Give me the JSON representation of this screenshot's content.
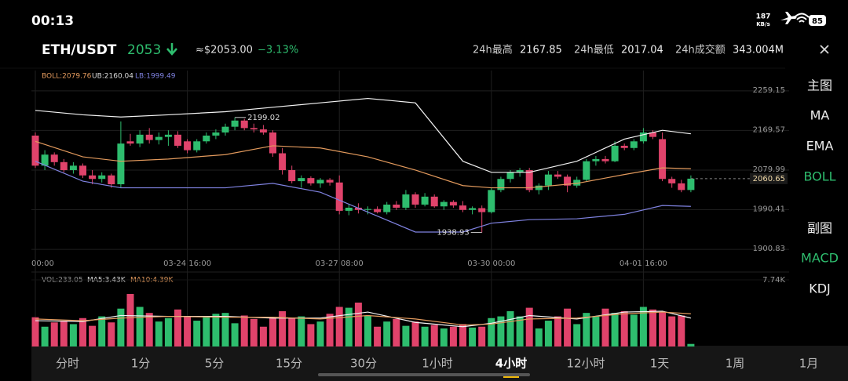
{
  "status_bar": {
    "time": "00:13",
    "speed": "187",
    "speed_unit": "KB/s",
    "battery": "85"
  },
  "header": {
    "pair": "ETH/USDT",
    "price": "2053",
    "approx": "≈$2053.00",
    "change": "−3.13%",
    "stats": [
      {
        "label": "24h最高",
        "value": "2167.85"
      },
      {
        "label": "24h最低",
        "value": "2017.04"
      },
      {
        "label": "24h成交额",
        "value": "343.004M"
      }
    ]
  },
  "chart": {
    "type": "candlestick",
    "legend": [
      {
        "text": "BOLL:2079.76",
        "color": "#e39a5d"
      },
      {
        "text": "UB:2160.04",
        "color": "#dddddd"
      },
      {
        "text": "LB:1999.49",
        "color": "#7f82e0"
      }
    ],
    "up_color": "#2ebd6e",
    "down_color": "#e0436b",
    "ylim": [
      1862,
      2305
    ],
    "yticks": [
      2259.15,
      2169.57,
      2079.99,
      1990.41,
      1900.83
    ],
    "xticks": [
      {
        "value": 0,
        "label": "00:00"
      },
      {
        "value": 16,
        "label": "03-24 16:00"
      },
      {
        "value": 32,
        "label": "03-27 08:00"
      },
      {
        "value": 48,
        "label": "03-30 00:00"
      },
      {
        "value": 64,
        "label": "04-01 16:00"
      }
    ],
    "candles": [
      [
        2158,
        2165,
        2085,
        2090
      ],
      [
        2090,
        2125,
        2080,
        2115
      ],
      [
        2115,
        2120,
        2090,
        2098
      ],
      [
        2098,
        2105,
        2075,
        2080
      ],
      [
        2080,
        2098,
        2072,
        2090
      ],
      [
        2090,
        2095,
        2062,
        2068
      ],
      [
        2068,
        2080,
        2048,
        2060
      ],
      [
        2060,
        2075,
        2052,
        2068
      ],
      [
        2068,
        2072,
        2040,
        2048
      ],
      [
        2048,
        2190,
        2040,
        2140
      ],
      [
        2145,
        2162,
        2135,
        2140
      ],
      [
        2140,
        2170,
        2132,
        2160
      ],
      [
        2160,
        2175,
        2140,
        2148
      ],
      [
        2148,
        2165,
        2138,
        2155
      ],
      [
        2155,
        2170,
        2135,
        2160
      ],
      [
        2160,
        2168,
        2130,
        2135
      ],
      [
        2145,
        2150,
        2118,
        2125
      ],
      [
        2125,
        2150,
        2120,
        2145
      ],
      [
        2145,
        2165,
        2140,
        2158
      ],
      [
        2158,
        2172,
        2150,
        2165
      ],
      [
        2165,
        2185,
        2158,
        2178
      ],
      [
        2178,
        2199.02,
        2170,
        2192
      ],
      [
        2192,
        2196,
        2170,
        2175
      ],
      [
        2175,
        2185,
        2165,
        2172
      ],
      [
        2172,
        2182,
        2160,
        2165
      ],
      [
        2165,
        2170,
        2110,
        2118
      ],
      [
        2118,
        2130,
        2070,
        2080
      ],
      [
        2080,
        2090,
        2050,
        2055
      ],
      [
        2055,
        2068,
        2040,
        2062
      ],
      [
        2062,
        2066,
        2045,
        2050
      ],
      [
        2050,
        2062,
        2040,
        2058
      ],
      [
        2058,
        2062,
        2045,
        2052
      ],
      [
        2052,
        2068,
        1980,
        1988
      ],
      [
        1988,
        2002,
        1978,
        1995
      ],
      [
        1995,
        2005,
        1982,
        1990
      ],
      [
        1990,
        1998,
        1980,
        1992
      ],
      [
        1992,
        1998,
        1982,
        1985
      ],
      [
        1985,
        2008,
        1980,
        2002
      ],
      [
        2002,
        2010,
        1990,
        1995
      ],
      [
        1995,
        2035,
        1990,
        2025
      ],
      [
        2025,
        2030,
        1995,
        2002
      ],
      [
        2002,
        2028,
        1998,
        2020
      ],
      [
        2020,
        2025,
        1995,
        1998
      ],
      [
        1998,
        2012,
        1990,
        2008
      ],
      [
        2008,
        2012,
        1995,
        2000
      ],
      [
        2000,
        2010,
        1985,
        1990
      ],
      [
        1990,
        1998,
        1980,
        1994
      ],
      [
        1994,
        2000,
        1938.93,
        1985
      ],
      [
        1985,
        2040,
        1982,
        2035
      ],
      [
        2035,
        2065,
        2030,
        2060
      ],
      [
        2060,
        2080,
        2052,
        2075
      ],
      [
        2075,
        2085,
        2065,
        2080
      ],
      [
        2080,
        2085,
        2030,
        2035
      ],
      [
        2035,
        2050,
        2025,
        2045
      ],
      [
        2045,
        2078,
        2035,
        2070
      ],
      [
        2070,
        2078,
        2060,
        2065
      ],
      [
        2065,
        2070,
        2030,
        2045
      ],
      [
        2045,
        2065,
        2040,
        2058
      ],
      [
        2058,
        2105,
        2055,
        2100
      ],
      [
        2100,
        2112,
        2090,
        2105
      ],
      [
        2105,
        2112,
        2095,
        2100
      ],
      [
        2100,
        2145,
        2098,
        2135
      ],
      [
        2135,
        2140,
        2125,
        2130
      ],
      [
        2130,
        2150,
        2125,
        2145
      ],
      [
        2145,
        2175,
        2140,
        2165
      ],
      [
        2165,
        2170,
        2150,
        2155
      ],
      [
        2150,
        2165,
        2055,
        2060
      ],
      [
        2060,
        2065,
        2040,
        2050
      ],
      [
        2050,
        2058,
        2030,
        2035
      ],
      [
        2035,
        2068,
        2030,
        2060.65
      ]
    ],
    "boll": {
      "index": [
        0,
        5,
        9,
        14,
        20,
        25,
        30,
        35,
        40,
        45,
        48,
        52,
        57,
        62,
        66,
        69
      ],
      "series": [
        {
          "color": "#f2f2f2",
          "values": [
            2215,
            2205,
            2200,
            2205,
            2212,
            2222,
            2232,
            2242,
            2232,
            2100,
            2075,
            2075,
            2100,
            2150,
            2170,
            2162
          ]
        },
        {
          "color": "#e39a5d",
          "values": [
            2145,
            2110,
            2100,
            2105,
            2115,
            2135,
            2130,
            2110,
            2080,
            2045,
            2040,
            2040,
            2050,
            2070,
            2085,
            2083
          ]
        },
        {
          "color": "#7f82e0",
          "values": [
            2100,
            2055,
            2040,
            2040,
            2040,
            2050,
            2030,
            1985,
            1940,
            1940,
            1960,
            1968,
            1970,
            1980,
            2000,
            1998
          ]
        }
      ]
    },
    "annotations": [
      {
        "index": 21,
        "value": 2199.02
      },
      {
        "index": 47,
        "value": 1938.93
      }
    ],
    "last_price": 2060.65
  },
  "volume": {
    "legend": [
      {
        "text": "VOL:233.05",
        "color": "#9a9a9a"
      },
      {
        "text": "MA5:3.43K",
        "color": "#dddddd"
      },
      {
        "text": "MA10:4.39K",
        "color": "#e39a5d"
      }
    ],
    "ylim": [
      0,
      7.74
    ],
    "yticks": [
      {
        "value": 7.74,
        "label": "7.74K"
      }
    ],
    "values": [
      3.4,
      2.3,
      2.8,
      3.0,
      2.6,
      3.3,
      2.4,
      3.5,
      2.8,
      4.4,
      6.1,
      4.6,
      3.9,
      2.9,
      3.3,
      4.3,
      3.5,
      3.0,
      3.4,
      3.8,
      3.9,
      2.7,
      3.6,
      3.2,
      2.3,
      3.4,
      4.1,
      3.3,
      3.5,
      2.6,
      2.9,
      3.8,
      4.6,
      4.5,
      5.1,
      3.6,
      2.3,
      2.9,
      3.2,
      2.4,
      2.9,
      2.3,
      2.5,
      2.1,
      2.3,
      2.6,
      2.2,
      2.3,
      3.3,
      3.5,
      4.1,
      3.5,
      4.5,
      2.1,
      3.0,
      3.5,
      4.4,
      2.6,
      3.9,
      3.5,
      4.4,
      3.9,
      4.1,
      3.7,
      4.6,
      4.3,
      4.0,
      3.5,
      3.6,
      0.3
    ],
    "ma": {
      "index": [
        0,
        5,
        9,
        14,
        20,
        25,
        30,
        35,
        40,
        45,
        48,
        52,
        57,
        62,
        66,
        69
      ],
      "series": [
        {
          "color": "#f2f2f2",
          "values": [
            3.0,
            2.9,
            3.6,
            3.5,
            3.5,
            3.3,
            3.3,
            4.0,
            2.8,
            2.3,
            2.7,
            3.6,
            3.2,
            4.0,
            4.1,
            3.3
          ]
        },
        {
          "color": "#e39a5d",
          "values": [
            3.2,
            3.0,
            3.3,
            3.5,
            3.4,
            3.4,
            3.2,
            3.6,
            3.2,
            2.5,
            2.6,
            3.2,
            3.3,
            3.8,
            4.0,
            3.8
          ]
        }
      ]
    }
  },
  "side_menu": {
    "items": [
      {
        "text": "主图"
      },
      {
        "text": "MA"
      },
      {
        "text": "EMA"
      },
      {
        "text": "BOLL",
        "active": true
      },
      {
        "text": "副图"
      },
      {
        "text": "MACD",
        "active": true
      },
      {
        "text": "KDJ"
      }
    ]
  },
  "tabs": {
    "items": [
      "分时",
      "1分",
      "5分",
      "15分",
      "30分",
      "1小时",
      "4小时",
      "12小时",
      "1天",
      "1周",
      "1月"
    ],
    "active": 6
  }
}
